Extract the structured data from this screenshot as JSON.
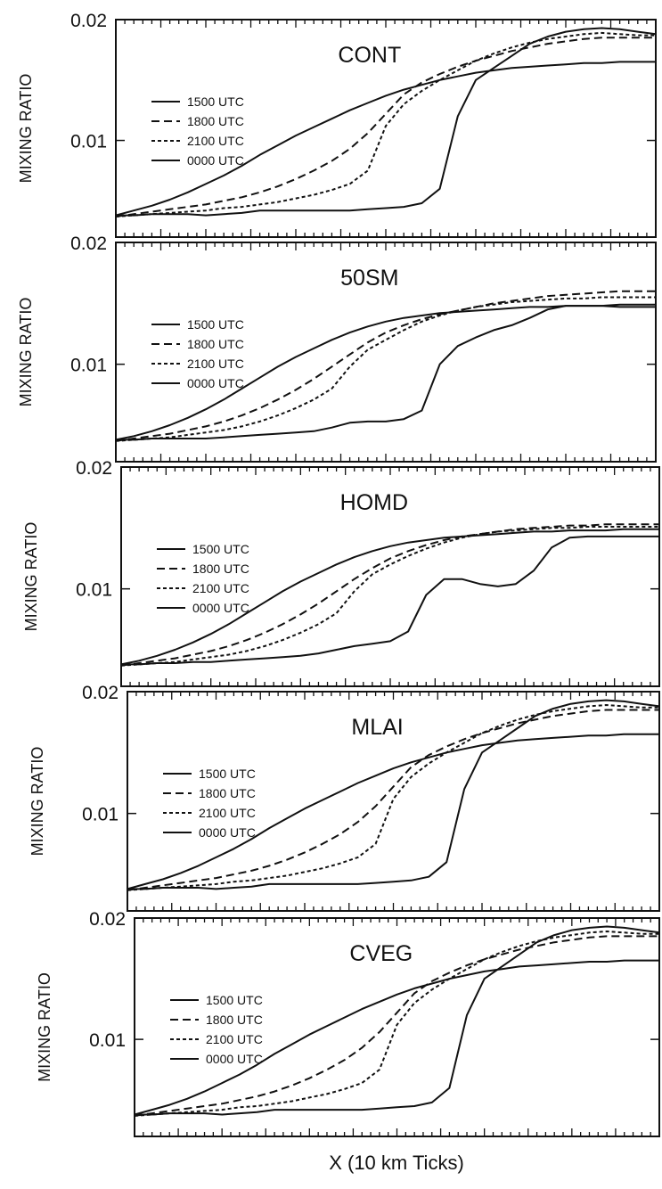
{
  "figure": {
    "xlabel": "X (10 km Ticks)",
    "ylabel": "MIXING RATIO"
  },
  "chart_data": [
    {
      "type": "line",
      "title": "CONT",
      "ylabel": "MIXING RATIO",
      "ylim": [
        0.002,
        0.02
      ],
      "yticks": [
        "0.02",
        "0.01"
      ],
      "x": [
        0,
        2,
        4,
        6,
        8,
        10,
        12,
        14,
        16,
        18,
        20,
        22,
        24,
        26,
        28,
        30,
        32,
        34,
        36,
        38,
        40,
        42,
        44,
        46,
        48,
        50,
        52,
        54,
        56,
        58,
        60
      ],
      "series": [
        {
          "name": "1500 UTC",
          "dash": "solid",
          "values": [
            0.0038,
            0.0042,
            0.0046,
            0.0051,
            0.0057,
            0.0064,
            0.0071,
            0.0079,
            0.0088,
            0.0096,
            0.0104,
            0.0111,
            0.0118,
            0.0125,
            0.0131,
            0.0137,
            0.0142,
            0.0146,
            0.015,
            0.0153,
            0.0156,
            0.0158,
            0.016,
            0.0161,
            0.0162,
            0.0163,
            0.0164,
            0.0164,
            0.0165,
            0.0165,
            0.0165
          ]
        },
        {
          "name": "1800 UTC",
          "dash": "long",
          "values": [
            0.0037,
            0.0039,
            0.0041,
            0.0043,
            0.0045,
            0.0047,
            0.005,
            0.0053,
            0.0057,
            0.0062,
            0.0068,
            0.0075,
            0.0083,
            0.0093,
            0.0106,
            0.0122,
            0.0138,
            0.0148,
            0.0155,
            0.0161,
            0.0166,
            0.017,
            0.0174,
            0.0177,
            0.018,
            0.0182,
            0.0184,
            0.0185,
            0.0185,
            0.0185,
            0.0185
          ]
        },
        {
          "name": "2100 UTC",
          "dash": "short",
          "values": [
            0.0037,
            0.0038,
            0.0039,
            0.004,
            0.0041,
            0.0042,
            0.0044,
            0.0045,
            0.0047,
            0.0049,
            0.0052,
            0.0055,
            0.0059,
            0.0064,
            0.0075,
            0.0112,
            0.013,
            0.0141,
            0.015,
            0.0158,
            0.0166,
            0.0172,
            0.0177,
            0.0181,
            0.0184,
            0.0186,
            0.0188,
            0.0189,
            0.0188,
            0.0187,
            0.0187
          ]
        },
        {
          "name": "0000 UTC",
          "dash": "solid",
          "values": [
            0.0038,
            0.0038,
            0.0039,
            0.0039,
            0.0039,
            0.0038,
            0.0039,
            0.004,
            0.0042,
            0.0042,
            0.0042,
            0.0042,
            0.0042,
            0.0042,
            0.0043,
            0.0044,
            0.0045,
            0.0048,
            0.006,
            0.012,
            0.015,
            0.016,
            0.017,
            0.018,
            0.0186,
            0.019,
            0.0192,
            0.0193,
            0.0192,
            0.019,
            0.0188
          ]
        }
      ]
    },
    {
      "type": "line",
      "title": "50SM",
      "ylabel": "MIXING RATIO",
      "ylim": [
        0.002,
        0.02
      ],
      "yticks": [
        "0.02",
        "0.01"
      ],
      "x": [
        0,
        2,
        4,
        6,
        8,
        10,
        12,
        14,
        16,
        18,
        20,
        22,
        24,
        26,
        28,
        30,
        32,
        34,
        36,
        38,
        40,
        42,
        44,
        46,
        48,
        50,
        52,
        54,
        56,
        58,
        60
      ],
      "series": [
        {
          "name": "1500 UTC",
          "dash": "solid",
          "values": [
            0.0038,
            0.0041,
            0.0045,
            0.005,
            0.0056,
            0.0063,
            0.0071,
            0.008,
            0.0089,
            0.0098,
            0.0106,
            0.0113,
            0.012,
            0.0126,
            0.0131,
            0.0135,
            0.0138,
            0.014,
            0.0142,
            0.0143,
            0.0144,
            0.0145,
            0.0146,
            0.0147,
            0.0147,
            0.0148,
            0.0148,
            0.0148,
            0.0149,
            0.0149,
            0.0149
          ]
        },
        {
          "name": "1800 UTC",
          "dash": "long",
          "values": [
            0.0037,
            0.0039,
            0.0041,
            0.0043,
            0.0046,
            0.0049,
            0.0053,
            0.0058,
            0.0064,
            0.0071,
            0.0079,
            0.0088,
            0.0098,
            0.0108,
            0.0118,
            0.0126,
            0.0132,
            0.0137,
            0.0141,
            0.0144,
            0.0147,
            0.015,
            0.0152,
            0.0154,
            0.0156,
            0.0157,
            0.0158,
            0.0159,
            0.016,
            0.016,
            0.016
          ]
        },
        {
          "name": "2100 UTC",
          "dash": "short",
          "values": [
            0.0037,
            0.0038,
            0.0039,
            0.004,
            0.0042,
            0.0044,
            0.0046,
            0.0049,
            0.0053,
            0.0058,
            0.0064,
            0.0071,
            0.008,
            0.0098,
            0.0112,
            0.012,
            0.0128,
            0.0135,
            0.014,
            0.0144,
            0.0147,
            0.0149,
            0.0151,
            0.0152,
            0.0153,
            0.0154,
            0.0154,
            0.0155,
            0.0155,
            0.0155,
            0.0155
          ]
        },
        {
          "name": "0000 UTC",
          "dash": "solid",
          "values": [
            0.0038,
            0.0038,
            0.0039,
            0.0039,
            0.0039,
            0.0039,
            0.004,
            0.0041,
            0.0042,
            0.0043,
            0.0044,
            0.0045,
            0.0048,
            0.0052,
            0.0053,
            0.0053,
            0.0055,
            0.0062,
            0.01,
            0.0115,
            0.0122,
            0.0128,
            0.0132,
            0.0138,
            0.0145,
            0.0148,
            0.0148,
            0.0148,
            0.0147,
            0.0147,
            0.0147
          ]
        }
      ]
    },
    {
      "type": "line",
      "title": "HOMD",
      "ylabel": "MIXING RATIO",
      "ylim": [
        0.002,
        0.02
      ],
      "yticks": [
        "0.02",
        "0.01"
      ],
      "x": [
        0,
        2,
        4,
        6,
        8,
        10,
        12,
        14,
        16,
        18,
        20,
        22,
        24,
        26,
        28,
        30,
        32,
        34,
        36,
        38,
        40,
        42,
        44,
        46,
        48,
        50,
        52,
        54,
        56,
        58,
        60
      ],
      "series": [
        {
          "name": "1500 UTC",
          "dash": "solid",
          "values": [
            0.0038,
            0.0041,
            0.0045,
            0.005,
            0.0056,
            0.0063,
            0.0071,
            0.008,
            0.0089,
            0.0098,
            0.0106,
            0.0113,
            0.012,
            0.0126,
            0.0131,
            0.0135,
            0.0138,
            0.014,
            0.0142,
            0.0143,
            0.0144,
            0.0145,
            0.0146,
            0.0147,
            0.0147,
            0.0148,
            0.0148,
            0.0148,
            0.0149,
            0.0149,
            0.0149
          ]
        },
        {
          "name": "1800 UTC",
          "dash": "long",
          "values": [
            0.0037,
            0.0039,
            0.0041,
            0.0043,
            0.0046,
            0.0049,
            0.0053,
            0.0058,
            0.0064,
            0.0071,
            0.0079,
            0.0088,
            0.0098,
            0.0108,
            0.0117,
            0.0125,
            0.0131,
            0.0136,
            0.014,
            0.0143,
            0.0145,
            0.0147,
            0.0149,
            0.015,
            0.0151,
            0.0152,
            0.0152,
            0.0153,
            0.0153,
            0.0153,
            0.0153
          ]
        },
        {
          "name": "2100 UTC",
          "dash": "short",
          "values": [
            0.0037,
            0.0038,
            0.0039,
            0.004,
            0.0042,
            0.0044,
            0.0046,
            0.0049,
            0.0053,
            0.0058,
            0.0064,
            0.0071,
            0.008,
            0.0098,
            0.0112,
            0.012,
            0.0127,
            0.0133,
            0.0138,
            0.0142,
            0.0145,
            0.0147,
            0.0148,
            0.0149,
            0.015,
            0.015,
            0.0151,
            0.0151,
            0.0151,
            0.0151,
            0.0151
          ]
        },
        {
          "name": "0000 UTC",
          "dash": "solid",
          "values": [
            0.0038,
            0.0038,
            0.0039,
            0.0039,
            0.004,
            0.004,
            0.0041,
            0.0042,
            0.0043,
            0.0044,
            0.0045,
            0.0047,
            0.005,
            0.0053,
            0.0055,
            0.0057,
            0.0065,
            0.0095,
            0.0108,
            0.0108,
            0.0104,
            0.0102,
            0.0104,
            0.0115,
            0.0134,
            0.0142,
            0.0143,
            0.0143,
            0.0143,
            0.0143,
            0.0143
          ]
        }
      ]
    },
    {
      "type": "line",
      "title": "MLAI",
      "ylabel": "MIXING RATIO",
      "ylim": [
        0.002,
        0.02
      ],
      "yticks": [
        "0.02",
        "0.01"
      ],
      "x": [
        0,
        2,
        4,
        6,
        8,
        10,
        12,
        14,
        16,
        18,
        20,
        22,
        24,
        26,
        28,
        30,
        32,
        34,
        36,
        38,
        40,
        42,
        44,
        46,
        48,
        50,
        52,
        54,
        56,
        58,
        60
      ],
      "series": [
        {
          "name": "1500 UTC",
          "dash": "solid",
          "values": [
            0.0038,
            0.0042,
            0.0046,
            0.0051,
            0.0057,
            0.0064,
            0.0071,
            0.0079,
            0.0088,
            0.0096,
            0.0104,
            0.0111,
            0.0118,
            0.0125,
            0.0131,
            0.0137,
            0.0142,
            0.0146,
            0.015,
            0.0153,
            0.0156,
            0.0158,
            0.016,
            0.0161,
            0.0162,
            0.0163,
            0.0164,
            0.0164,
            0.0165,
            0.0165,
            0.0165
          ]
        },
        {
          "name": "1800 UTC",
          "dash": "long",
          "values": [
            0.0037,
            0.0039,
            0.0041,
            0.0043,
            0.0045,
            0.0047,
            0.005,
            0.0053,
            0.0057,
            0.0062,
            0.0068,
            0.0075,
            0.0083,
            0.0093,
            0.0106,
            0.0122,
            0.0138,
            0.0148,
            0.0155,
            0.0161,
            0.0166,
            0.017,
            0.0174,
            0.0177,
            0.018,
            0.0182,
            0.0184,
            0.0185,
            0.0185,
            0.0185,
            0.0185
          ]
        },
        {
          "name": "2100 UTC",
          "dash": "short",
          "values": [
            0.0037,
            0.0038,
            0.0039,
            0.004,
            0.0041,
            0.0042,
            0.0044,
            0.0045,
            0.0047,
            0.0049,
            0.0052,
            0.0055,
            0.0059,
            0.0064,
            0.0075,
            0.0112,
            0.013,
            0.0141,
            0.015,
            0.0158,
            0.0166,
            0.0172,
            0.0177,
            0.0181,
            0.0184,
            0.0186,
            0.0188,
            0.0189,
            0.0188,
            0.0187,
            0.0187
          ]
        },
        {
          "name": "0000 UTC",
          "dash": "solid",
          "values": [
            0.0038,
            0.0038,
            0.0039,
            0.0039,
            0.0039,
            0.0038,
            0.0039,
            0.004,
            0.0042,
            0.0042,
            0.0042,
            0.0042,
            0.0042,
            0.0042,
            0.0043,
            0.0044,
            0.0045,
            0.0048,
            0.006,
            0.012,
            0.015,
            0.016,
            0.017,
            0.018,
            0.0186,
            0.019,
            0.0192,
            0.0193,
            0.0192,
            0.019,
            0.0188
          ]
        }
      ]
    },
    {
      "type": "line",
      "title": "CVEG",
      "ylabel": "MIXING RATIO",
      "ylim": [
        0.002,
        0.02
      ],
      "yticks": [
        "0.02",
        "0.01"
      ],
      "x": [
        0,
        2,
        4,
        6,
        8,
        10,
        12,
        14,
        16,
        18,
        20,
        22,
        24,
        26,
        28,
        30,
        32,
        34,
        36,
        38,
        40,
        42,
        44,
        46,
        48,
        50,
        52,
        54,
        56,
        58,
        60
      ],
      "series": [
        {
          "name": "1500 UTC",
          "dash": "solid",
          "values": [
            0.0038,
            0.0042,
            0.0046,
            0.0051,
            0.0057,
            0.0064,
            0.0071,
            0.0079,
            0.0088,
            0.0096,
            0.0104,
            0.0111,
            0.0118,
            0.0125,
            0.0131,
            0.0137,
            0.0142,
            0.0146,
            0.015,
            0.0153,
            0.0156,
            0.0158,
            0.016,
            0.0161,
            0.0162,
            0.0163,
            0.0164,
            0.0164,
            0.0165,
            0.0165,
            0.0165
          ]
        },
        {
          "name": "1800 UTC",
          "dash": "long",
          "values": [
            0.0037,
            0.0039,
            0.0041,
            0.0043,
            0.0045,
            0.0047,
            0.005,
            0.0053,
            0.0057,
            0.0062,
            0.0068,
            0.0075,
            0.0083,
            0.0093,
            0.0106,
            0.0122,
            0.0138,
            0.0148,
            0.0155,
            0.0161,
            0.0166,
            0.017,
            0.0174,
            0.0177,
            0.018,
            0.0182,
            0.0184,
            0.0185,
            0.0185,
            0.0185,
            0.0185
          ]
        },
        {
          "name": "2100 UTC",
          "dash": "short",
          "values": [
            0.0037,
            0.0038,
            0.0039,
            0.004,
            0.0041,
            0.0042,
            0.0044,
            0.0045,
            0.0047,
            0.0049,
            0.0052,
            0.0055,
            0.0059,
            0.0064,
            0.0075,
            0.0112,
            0.013,
            0.0141,
            0.015,
            0.0158,
            0.0166,
            0.0172,
            0.0177,
            0.0181,
            0.0184,
            0.0186,
            0.0188,
            0.0189,
            0.0188,
            0.0187,
            0.0187
          ]
        },
        {
          "name": "0000 UTC",
          "dash": "solid",
          "values": [
            0.0038,
            0.0038,
            0.0039,
            0.0039,
            0.0039,
            0.0038,
            0.0039,
            0.004,
            0.0042,
            0.0042,
            0.0042,
            0.0042,
            0.0042,
            0.0042,
            0.0043,
            0.0044,
            0.0045,
            0.0048,
            0.006,
            0.012,
            0.015,
            0.016,
            0.017,
            0.018,
            0.0186,
            0.019,
            0.0192,
            0.0193,
            0.0192,
            0.019,
            0.0188
          ]
        }
      ]
    }
  ]
}
